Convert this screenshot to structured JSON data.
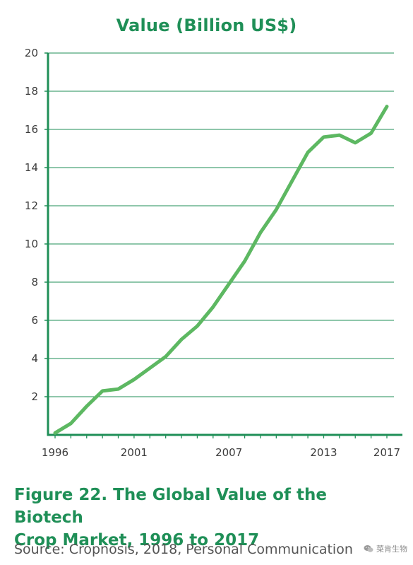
{
  "chart_data": {
    "type": "line",
    "title": "Value (Billion US$)",
    "xlabel": "",
    "ylabel": "",
    "x": [
      1996,
      1997,
      1998,
      1999,
      2000,
      2001,
      2002,
      2003,
      2004,
      2005,
      2006,
      2007,
      2008,
      2009,
      2010,
      2011,
      2012,
      2013,
      2014,
      2015,
      2016,
      2017
    ],
    "series": [
      {
        "values": [
          0.1,
          0.6,
          1.5,
          2.3,
          2.4,
          2.9,
          3.5,
          4.1,
          5.0,
          5.7,
          6.7,
          7.9,
          9.1,
          10.6,
          11.8,
          13.3,
          14.8,
          15.6,
          15.7,
          15.3,
          15.8,
          17.2
        ],
        "color": "#5db862"
      }
    ],
    "x_ticks": [
      "1996",
      "2001",
      "2007",
      "2013",
      "2017"
    ],
    "y_ticks": [
      "2",
      "4",
      "6",
      "8",
      "10",
      "12",
      "14",
      "16",
      "18",
      "20"
    ],
    "xlim": [
      1996,
      2017
    ],
    "ylim": [
      0,
      20
    ],
    "grid": "horizontal",
    "axis_color": "#1f8f57",
    "grid_color": "#1f8f57"
  },
  "caption": {
    "line1": "Figure 22. The Global Value of the Biotech",
    "line2": "Crop Market, 1996 to 2017"
  },
  "source": "Source: Cropnosis, 2018, Personal Communication",
  "watermark": {
    "icon": "wechat-icon",
    "text": "菜肯生物"
  }
}
